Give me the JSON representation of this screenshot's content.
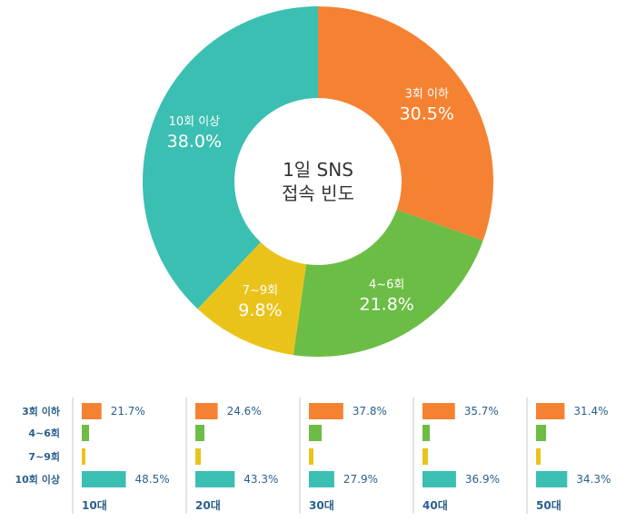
{
  "chart_data": [
    {
      "type": "pie",
      "title": "1일 SNS 접속 빈도",
      "title_lines": [
        "1일 SNS",
        "접속 빈도"
      ],
      "categories": [
        "3회 이하",
        "4~6회",
        "7~9회",
        "10회 이상"
      ],
      "values": [
        30.5,
        21.8,
        9.8,
        38.0
      ],
      "value_labels": [
        "30.5%",
        "21.8%",
        "9.8%",
        "38.0%"
      ],
      "colors": [
        "#f58232",
        "#6cbd45",
        "#eac31a",
        "#3bbfb2"
      ],
      "style": "donut"
    },
    {
      "type": "bar",
      "orientation": "horizontal",
      "row_labels": [
        "3회 이하",
        "4~6회",
        "7~9회",
        "10회 이상"
      ],
      "colors": [
        "#f58232",
        "#6cbd45",
        "#eac31a",
        "#3bbfb2"
      ],
      "groups": [
        {
          "name": "10대",
          "values": [
            21.7,
            null,
            null,
            48.5
          ],
          "labels": [
            "21.7%",
            "",
            "",
            "48.5%"
          ]
        },
        {
          "name": "20대",
          "values": [
            24.6,
            null,
            null,
            43.3
          ],
          "labels": [
            "24.6%",
            "",
            "",
            "43.3%"
          ]
        },
        {
          "name": "30대",
          "values": [
            37.8,
            null,
            null,
            27.9
          ],
          "labels": [
            "37.8%",
            "",
            "",
            "27.9%"
          ]
        },
        {
          "name": "40대",
          "values": [
            35.7,
            null,
            null,
            36.9
          ],
          "labels": [
            "35.7%",
            "",
            "",
            "36.9%"
          ]
        },
        {
          "name": "50대",
          "values": [
            31.4,
            null,
            null,
            34.3
          ],
          "labels": [
            "31.4%",
            "",
            "",
            "34.3%"
          ]
        }
      ],
      "unlabeled_bar_estimates": [
        [
          8,
          4
        ],
        [
          10,
          6
        ],
        [
          14,
          5
        ],
        [
          8,
          6
        ],
        [
          11,
          5
        ]
      ]
    }
  ]
}
